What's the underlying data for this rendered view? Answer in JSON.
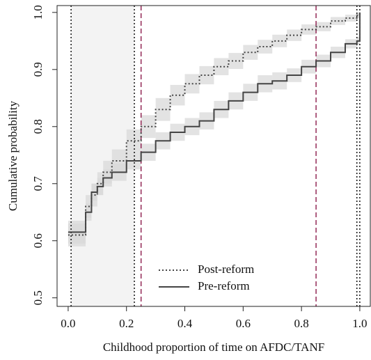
{
  "chart_data": {
    "type": "step",
    "xlabel": "Childhood proportion of time on AFDC/TANF",
    "ylabel": "Cumulative probability",
    "x": [
      0,
      0.055,
      0.06,
      0.08,
      0.1,
      0.12,
      0.15,
      0.2,
      0.25,
      0.3,
      0.35,
      0.4,
      0.45,
      0.5,
      0.55,
      0.6,
      0.65,
      0.7,
      0.75,
      0.8,
      0.85,
      0.9,
      0.95,
      0.99,
      1.0
    ],
    "series": [
      {
        "name": "Post-reform",
        "color": "#444444",
        "dash": "dotted",
        "values": [
          0.61,
          0.61,
          0.66,
          0.68,
          0.7,
          0.72,
          0.74,
          0.775,
          0.8,
          0.83,
          0.855,
          0.875,
          0.89,
          0.905,
          0.915,
          0.93,
          0.94,
          0.95,
          0.96,
          0.97,
          0.975,
          0.985,
          0.99,
          0.995,
          1.0
        ],
        "lower": [
          0.59,
          0.59,
          0.64,
          0.66,
          0.68,
          0.7,
          0.72,
          0.755,
          0.78,
          0.81,
          0.837,
          0.858,
          0.874,
          0.89,
          0.901,
          0.917,
          0.928,
          0.939,
          0.95,
          0.961,
          0.967,
          0.978,
          0.984,
          0.99,
          0.997
        ],
        "upper": [
          0.63,
          0.63,
          0.68,
          0.7,
          0.72,
          0.74,
          0.76,
          0.795,
          0.82,
          0.85,
          0.873,
          0.892,
          0.906,
          0.92,
          0.929,
          0.943,
          0.952,
          0.961,
          0.97,
          0.979,
          0.983,
          0.992,
          0.996,
          1.0,
          1.0
        ]
      },
      {
        "name": "Pre-reform",
        "color": "#444444",
        "dash": "solid",
        "values": [
          0.615,
          0.615,
          0.65,
          0.685,
          0.695,
          0.71,
          0.72,
          0.74,
          0.755,
          0.775,
          0.79,
          0.8,
          0.81,
          0.83,
          0.845,
          0.86,
          0.875,
          0.88,
          0.89,
          0.905,
          0.915,
          0.93,
          0.945,
          0.95,
          1.0
        ],
        "lower": [
          0.595,
          0.595,
          0.635,
          0.67,
          0.68,
          0.695,
          0.705,
          0.725,
          0.74,
          0.76,
          0.775,
          0.785,
          0.795,
          0.815,
          0.83,
          0.845,
          0.86,
          0.865,
          0.878,
          0.893,
          0.904,
          0.92,
          0.937,
          0.943,
          0.99
        ],
        "upper": [
          0.635,
          0.635,
          0.665,
          0.7,
          0.71,
          0.725,
          0.735,
          0.755,
          0.77,
          0.79,
          0.805,
          0.815,
          0.825,
          0.845,
          0.86,
          0.875,
          0.89,
          0.895,
          0.902,
          0.917,
          0.926,
          0.94,
          0.953,
          0.957,
          1.0
        ]
      }
    ],
    "band_color": "#d9d9d9",
    "shade": [
      0.01,
      0.227
    ],
    "shade_color": "#f3f3f3",
    "vlines": [
      {
        "x": 0.01,
        "style": "dotted",
        "color": "#000000"
      },
      {
        "x": 0.227,
        "style": "dotted",
        "color": "#000000"
      },
      {
        "x": 0.25,
        "style": "dashed",
        "color": "#8b1a4a"
      },
      {
        "x": 0.85,
        "style": "dashed",
        "color": "#8b1a4a"
      },
      {
        "x": 0.99,
        "style": "dotted",
        "color": "#000000"
      },
      {
        "x": 1.0,
        "style": "dotted",
        "color": "#000000"
      }
    ],
    "xlim": [
      -0.038,
      1.036
    ],
    "ylim": [
      0.485,
      1.012
    ],
    "xticks": [
      {
        "value": 0,
        "label": "0.0"
      },
      0.2,
      0.4,
      0.6,
      0.8,
      {
        "value": 1,
        "label": "1.0"
      }
    ],
    "yticks": [
      0.5,
      0.6,
      0.7,
      0.8,
      0.9,
      {
        "value": 1,
        "label": "1.0"
      }
    ],
    "legend": "lower left"
  }
}
